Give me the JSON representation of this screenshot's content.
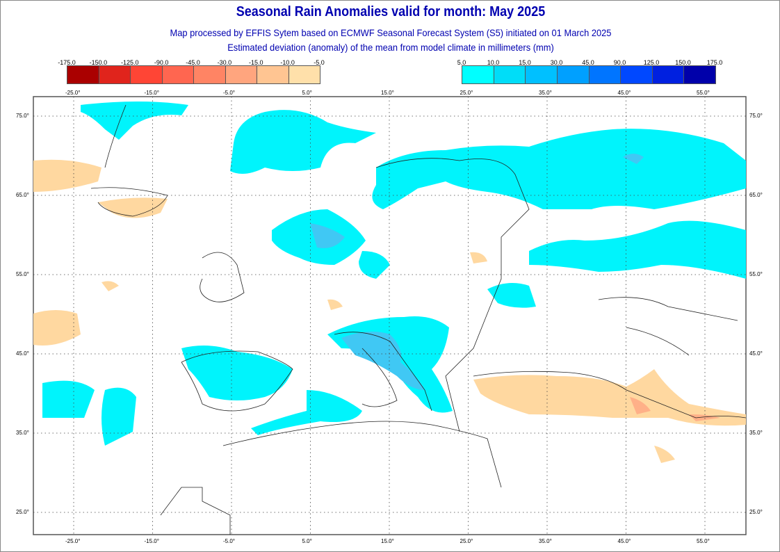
{
  "title": "Seasonal Rain Anomalies valid for month: May 2025",
  "subtitle1": "Map processed by EFFIS Sytem based on ECMWF Seasonal Forecast System (S5) initiated on 01 March 2025",
  "subtitle2": "Estimated deviation (anomaly) of the mean from model climate in millimeters (mm)",
  "legend": {
    "negative": {
      "labels": [
        "-175.0",
        "-150.0",
        "-125.0",
        "-90.0",
        "-45.0",
        "-30.0",
        "-15.0",
        "-10.0",
        "-5.0"
      ],
      "colors": [
        "#aa0000",
        "#e0241c",
        "#ff4535",
        "#ff6650",
        "#ff8464",
        "#ffa57e",
        "#ffc592",
        "#ffe0aa"
      ]
    },
    "positive": {
      "labels": [
        "5.0",
        "10.0",
        "15.0",
        "30.0",
        "45.0",
        "90.0",
        "125.0",
        "150.0",
        "175.0"
      ],
      "colors": [
        "#00ffff",
        "#00ddf8",
        "#00c0ff",
        "#00a0ff",
        "#0075ff",
        "#0048ff",
        "#0020e0",
        "#0000aa"
      ]
    }
  },
  "axes": {
    "lon_labels": [
      "-25.0°",
      "-15.0°",
      "-5.0°",
      "5.0°",
      "15.0°",
      "25.0°",
      "35.0°",
      "45.0°",
      "55.0°"
    ],
    "lat_labels": [
      "75.0°",
      "65.0°",
      "55.0°",
      "45.0°",
      "35.0°",
      "25.0°"
    ]
  }
}
